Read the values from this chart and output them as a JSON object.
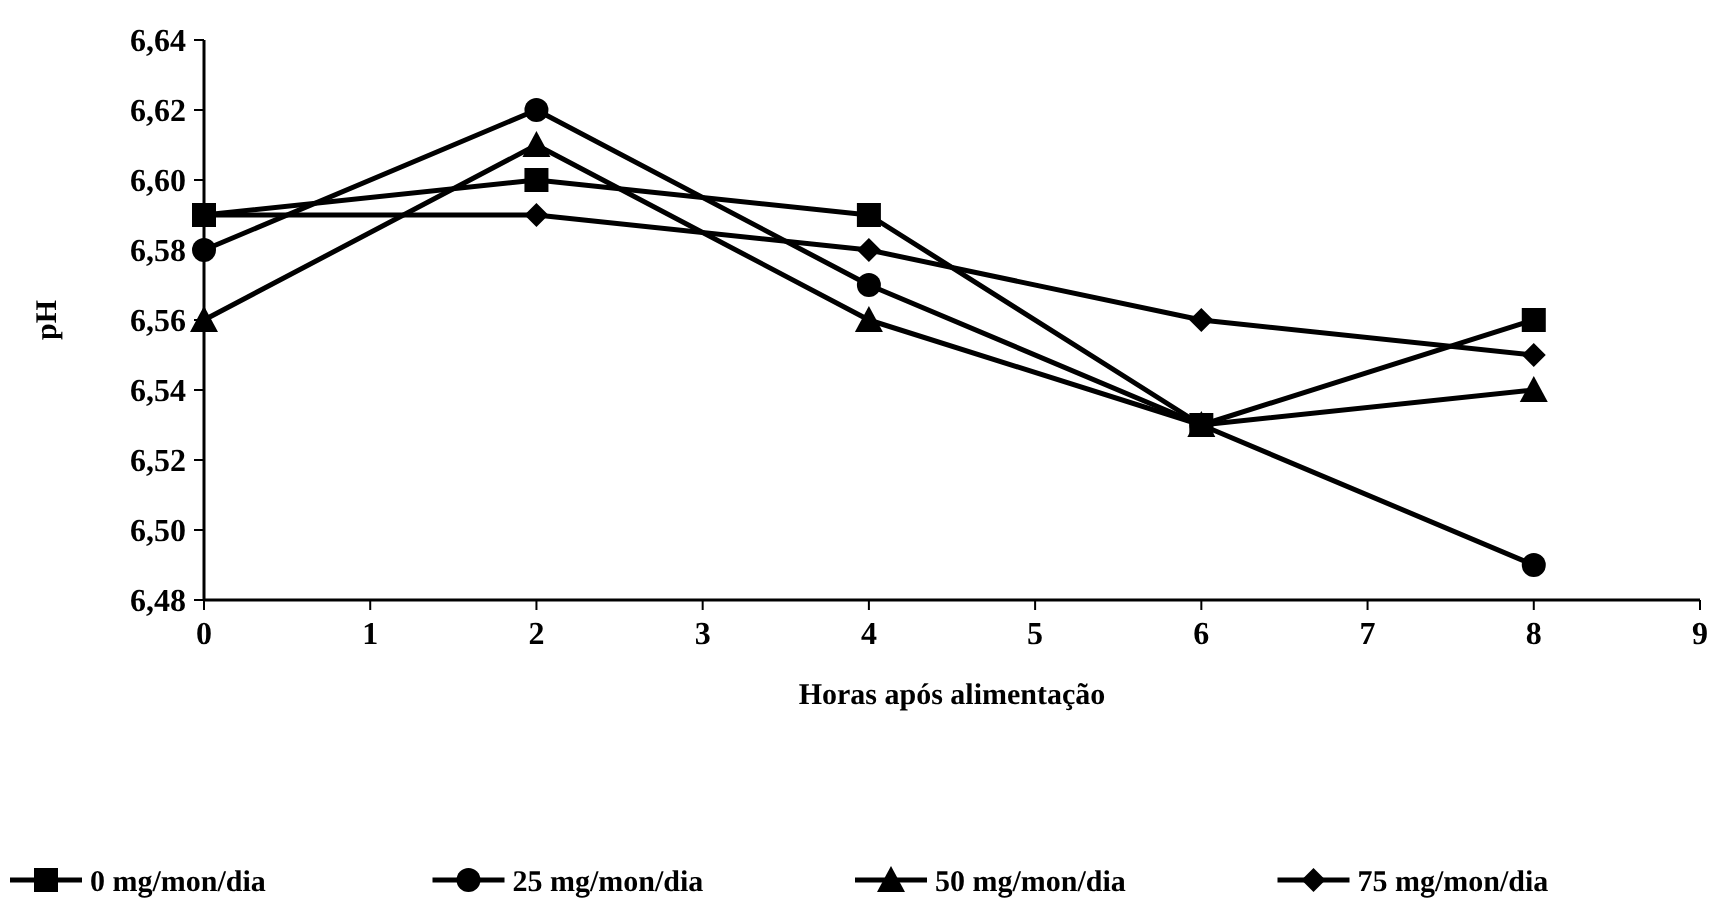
{
  "chart_data": {
    "type": "line",
    "xlabel": "Horas após alimentação",
    "ylabel": "pH",
    "xlim": [
      0,
      9
    ],
    "xticks": [
      0,
      1,
      2,
      3,
      4,
      5,
      6,
      7,
      8,
      9
    ],
    "ylim": [
      6.48,
      6.64
    ],
    "yticks": [
      {
        "value": 6.48,
        "label": "6,48"
      },
      {
        "value": 6.5,
        "label": "6,50"
      },
      {
        "value": 6.52,
        "label": "6,52"
      },
      {
        "value": 6.54,
        "label": "6,54"
      },
      {
        "value": 6.56,
        "label": "6,56"
      },
      {
        "value": 6.58,
        "label": "6,58"
      },
      {
        "value": 6.6,
        "label": "6,60"
      },
      {
        "value": 6.62,
        "label": "6,62"
      },
      {
        "value": 6.64,
        "label": "6,64"
      }
    ],
    "x": [
      0,
      2,
      4,
      6,
      8
    ],
    "legend": "bottom",
    "grid": false,
    "line_style": "solid",
    "series": [
      {
        "name": "0 mg/mon/dia",
        "color": "#000000",
        "marker": "square",
        "values": [
          6.59,
          6.6,
          6.59,
          6.53,
          6.56
        ]
      },
      {
        "name": "25 mg/mon/dia",
        "color": "#000000",
        "marker": "circle",
        "values": [
          6.58,
          6.62,
          6.57,
          6.53,
          6.49
        ]
      },
      {
        "name": "50 mg/mon/dia",
        "color": "#000000",
        "marker": "triangle",
        "values": [
          6.56,
          6.61,
          6.56,
          6.53,
          6.54
        ]
      },
      {
        "name": "75 mg/mon/dia",
        "color": "#000000",
        "marker": "diamond",
        "values": [
          6.59,
          6.59,
          6.58,
          6.56,
          6.55
        ]
      }
    ]
  }
}
